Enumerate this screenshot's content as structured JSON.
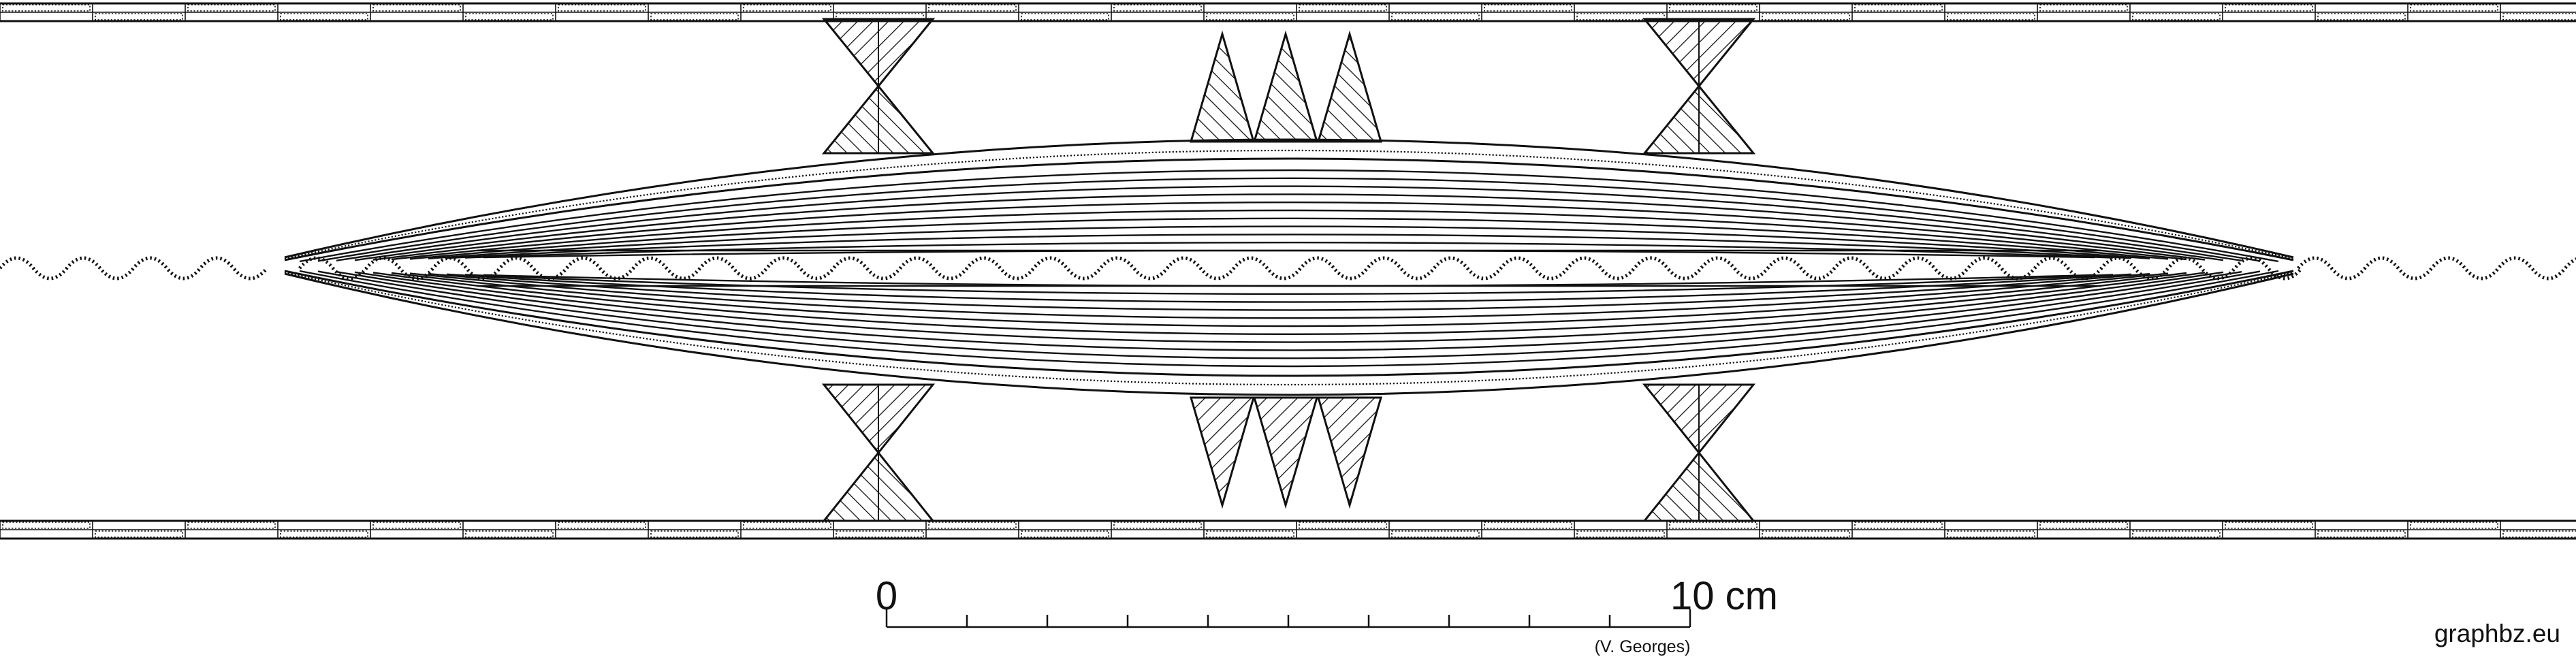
{
  "colors": {
    "ink": "#111111",
    "paper": "#ffffff"
  },
  "scale_bar": {
    "start_label": "0",
    "end_label": "10 cm",
    "divisions": 10,
    "credit": "(V. Georges)"
  },
  "watermark": "graphbz.eu",
  "motifs": {
    "bands": [
      "top-band",
      "bottom-band"
    ],
    "hourglass_count": 4,
    "triangle_groups": 2,
    "triangles_per_group": 3,
    "lens_lines_per_half": 11,
    "wave_strands": 3
  }
}
